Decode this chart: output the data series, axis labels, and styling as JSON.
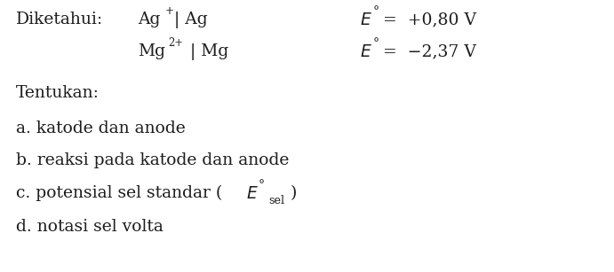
{
  "bg_color": "#ffffff",
  "text_color": "#1d1d1d",
  "fs": 13.5,
  "figsize": [
    6.91,
    3.07
  ],
  "dpi": 100,
  "font_family": "DejaVu Serif"
}
